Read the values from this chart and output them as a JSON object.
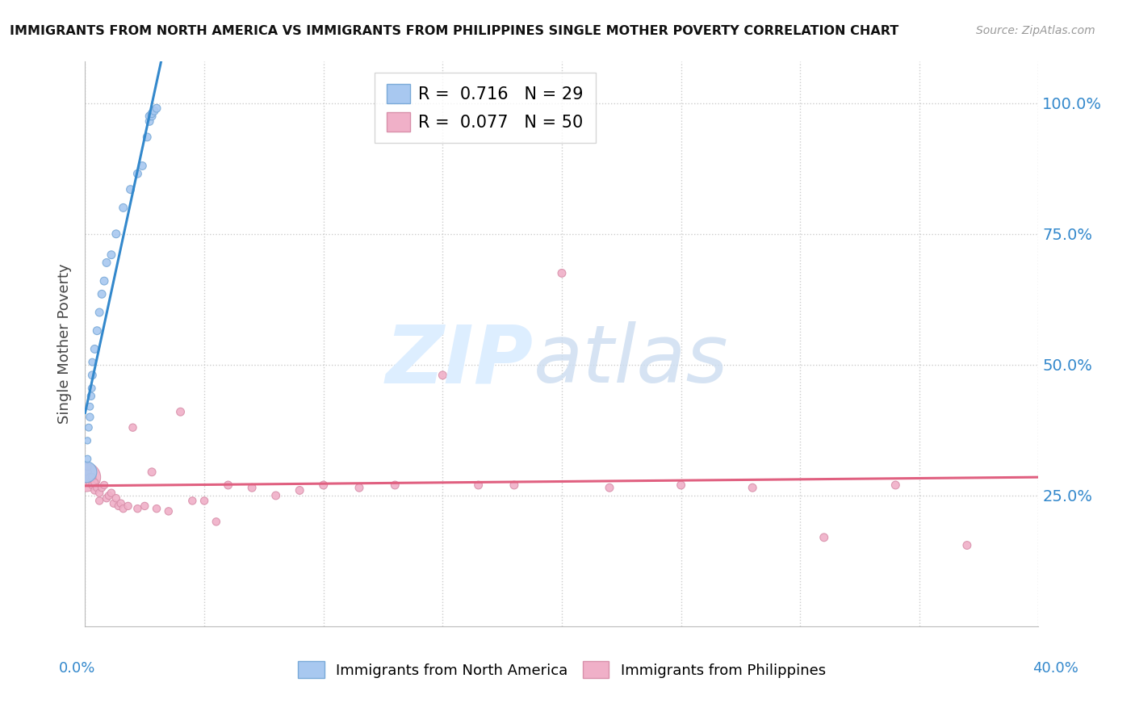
{
  "title": "IMMIGRANTS FROM NORTH AMERICA VS IMMIGRANTS FROM PHILIPPINES SINGLE MOTHER POVERTY CORRELATION CHART",
  "source": "Source: ZipAtlas.com",
  "ylabel": "Single Mother Poverty",
  "legend_label_blue": "Immigrants from North America",
  "legend_label_pink": "Immigrants from Philippines",
  "blue_color": "#a8c8f0",
  "pink_color": "#f0b0c8",
  "blue_line_color": "#3388cc",
  "pink_line_color": "#e06080",
  "blue_r_val": "0.716",
  "blue_n_val": "29",
  "pink_r_val": "0.077",
  "pink_n_val": "50",
  "xlim": [
    0.0,
    0.4
  ],
  "ylim": [
    0.0,
    1.08
  ],
  "y_tick_vals": [
    0.25,
    0.5,
    0.75,
    1.0
  ],
  "y_tick_labels": [
    "25.0%",
    "50.0%",
    "75.0%",
    "100.0%"
  ],
  "blue_x": [
    0.0005,
    0.001,
    0.001,
    0.0015,
    0.002,
    0.002,
    0.0025,
    0.0028,
    0.003,
    0.003,
    0.004,
    0.005,
    0.006,
    0.007,
    0.008,
    0.009,
    0.011,
    0.013,
    0.016,
    0.019,
    0.022,
    0.024,
    0.026,
    0.027,
    0.027,
    0.028,
    0.028,
    0.029,
    0.03
  ],
  "blue_y": [
    0.295,
    0.32,
    0.355,
    0.38,
    0.4,
    0.42,
    0.44,
    0.455,
    0.48,
    0.505,
    0.53,
    0.565,
    0.6,
    0.635,
    0.66,
    0.695,
    0.71,
    0.75,
    0.8,
    0.835,
    0.865,
    0.88,
    0.935,
    0.965,
    0.975,
    0.975,
    0.98,
    0.985,
    0.99
  ],
  "blue_sizes": [
    350,
    40,
    35,
    40,
    45,
    40,
    45,
    40,
    50,
    40,
    50,
    50,
    50,
    50,
    50,
    50,
    50,
    50,
    50,
    50,
    50,
    50,
    50,
    50,
    50,
    50,
    50,
    50,
    50
  ],
  "pink_x": [
    0.0005,
    0.001,
    0.001,
    0.002,
    0.002,
    0.003,
    0.003,
    0.004,
    0.004,
    0.005,
    0.006,
    0.006,
    0.007,
    0.008,
    0.009,
    0.01,
    0.011,
    0.012,
    0.013,
    0.014,
    0.015,
    0.016,
    0.018,
    0.02,
    0.022,
    0.025,
    0.028,
    0.03,
    0.035,
    0.04,
    0.045,
    0.05,
    0.055,
    0.06,
    0.07,
    0.08,
    0.09,
    0.1,
    0.115,
    0.13,
    0.15,
    0.165,
    0.18,
    0.2,
    0.22,
    0.25,
    0.28,
    0.31,
    0.34,
    0.37
  ],
  "pink_y": [
    0.285,
    0.295,
    0.305,
    0.275,
    0.285,
    0.27,
    0.285,
    0.26,
    0.275,
    0.265,
    0.24,
    0.255,
    0.265,
    0.27,
    0.245,
    0.25,
    0.255,
    0.235,
    0.245,
    0.23,
    0.235,
    0.225,
    0.23,
    0.38,
    0.225,
    0.23,
    0.295,
    0.225,
    0.22,
    0.41,
    0.24,
    0.24,
    0.2,
    0.27,
    0.265,
    0.25,
    0.26,
    0.27,
    0.265,
    0.27,
    0.48,
    0.27,
    0.27,
    0.675,
    0.265,
    0.27,
    0.265,
    0.17,
    0.27,
    0.155
  ],
  "pink_sizes": [
    650,
    50,
    45,
    45,
    45,
    45,
    45,
    45,
    45,
    45,
    45,
    45,
    45,
    45,
    45,
    45,
    45,
    45,
    45,
    45,
    45,
    45,
    45,
    45,
    45,
    45,
    50,
    45,
    45,
    50,
    45,
    45,
    45,
    50,
    50,
    50,
    50,
    50,
    50,
    50,
    50,
    50,
    50,
    50,
    50,
    50,
    50,
    50,
    50,
    50
  ]
}
